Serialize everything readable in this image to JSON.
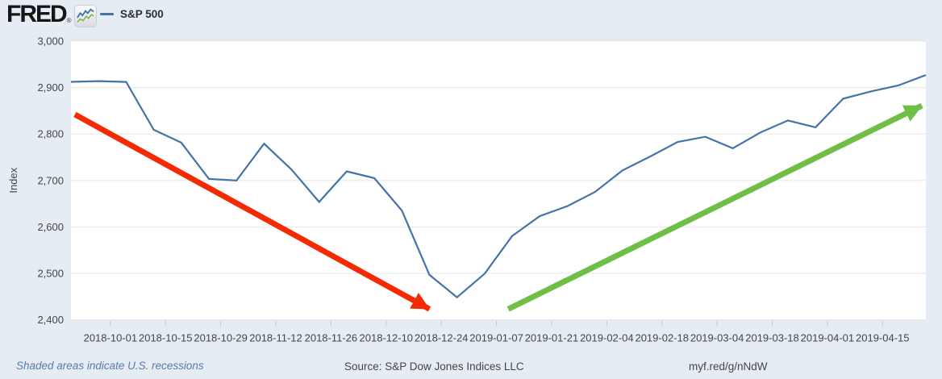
{
  "header": {
    "logo_text": "FRED",
    "logo_registered_mark": "®",
    "legend": {
      "series_label": "S&P 500",
      "series_color": "#4573a7"
    }
  },
  "chart_data": {
    "type": "line",
    "title": "",
    "ylabel": "Index",
    "xlabel": "",
    "ylim": [
      2400,
      3000
    ],
    "grid": "horizontal",
    "legend": [
      "S&P 500"
    ],
    "legend_position": "top-left-header",
    "colors": {
      "plot_background": "#ffffff",
      "page_background": "#e6ecf4",
      "gridline": "#e7e7e7"
    },
    "y_ticks": [
      {
        "value": 2400,
        "label": "2,400"
      },
      {
        "value": 2500,
        "label": "2,500"
      },
      {
        "value": 2600,
        "label": "2,600"
      },
      {
        "value": 2700,
        "label": "2,700"
      },
      {
        "value": 2800,
        "label": "2,800"
      },
      {
        "value": 2900,
        "label": "2,900"
      },
      {
        "value": 3000,
        "label": "3,000"
      }
    ],
    "x_ticks": [
      "2018-10-01",
      "2018-10-15",
      "2018-10-29",
      "2018-11-12",
      "2018-11-26",
      "2018-12-10",
      "2018-12-24",
      "2019-01-07",
      "2019-01-21",
      "2019-02-04",
      "2019-02-18",
      "2019-03-04",
      "2019-03-18",
      "2019-04-01",
      "2019-04-15"
    ],
    "series": [
      {
        "name": "S&P 500",
        "color": "#4573a7",
        "x": [
          "2018-09-21",
          "2018-09-28",
          "2018-10-05",
          "2018-10-12",
          "2018-10-19",
          "2018-10-26",
          "2018-11-02",
          "2018-11-09",
          "2018-11-16",
          "2018-11-23",
          "2018-11-30",
          "2018-12-07",
          "2018-12-14",
          "2018-12-21",
          "2018-12-28",
          "2019-01-04",
          "2019-01-11",
          "2019-01-18",
          "2019-01-25",
          "2019-02-01",
          "2019-02-08",
          "2019-02-15",
          "2019-02-22",
          "2019-03-01",
          "2019-03-08",
          "2019-03-15",
          "2019-03-22",
          "2019-03-29",
          "2019-04-05",
          "2019-04-12",
          "2019-04-19",
          "2019-04-26"
        ],
        "values": [
          2912.3,
          2913.8,
          2912.1,
          2809.2,
          2781.3,
          2703.4,
          2699.8,
          2779.1,
          2723.3,
          2653.8,
          2719.5,
          2704.9,
          2635.2,
          2496.6,
          2448.3,
          2499.2,
          2580.4,
          2623.1,
          2644.7,
          2675.1,
          2721.6,
          2751.5,
          2783.0,
          2794.1,
          2769.2,
          2803.3,
          2829.1,
          2814.4,
          2876.0,
          2891.6,
          2904.5,
          2926.9
        ]
      }
    ],
    "annotations": [
      {
        "name": "downtrend-arrow",
        "type": "arrow",
        "color": "#f42a05",
        "from": {
          "date": "2018-09-22",
          "value": 2842
        },
        "to": {
          "date": "2018-12-21",
          "value": 2423
        }
      },
      {
        "name": "uptrend-arrow",
        "type": "arrow",
        "color": "#6fbe45",
        "from": {
          "date": "2019-01-10",
          "value": 2423
        },
        "to": {
          "date": "2019-04-25",
          "value": 2861
        }
      }
    ]
  },
  "footer": {
    "note": "Shaded areas indicate U.S. recessions",
    "source": "Source: S&P Dow Jones Indices LLC",
    "link": "myf.red/g/nNdW"
  }
}
